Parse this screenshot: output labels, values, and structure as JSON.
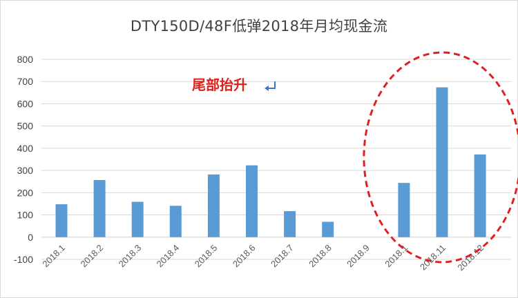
{
  "colors": {
    "bar": "#5b9bd5",
    "grid": "#d9d9d9",
    "annotation": "#e0201a",
    "highlight_ellipse": "#e02020"
  },
  "chart_data": {
    "type": "bar",
    "title": "DTY150D/48F低弹2018年月均现金流",
    "xlabel": "",
    "ylabel": "",
    "categories": [
      "2018.1",
      "2018.2",
      "2018.3",
      "2018.4",
      "2018.5",
      "2018.6",
      "2018.7",
      "2018.8",
      "2018.9",
      "2018.1",
      "2018.11",
      "2018.12"
    ],
    "values": [
      148,
      257,
      159,
      141,
      282,
      323,
      117,
      69,
      0,
      244,
      674,
      372
    ],
    "ylim": [
      -100,
      800
    ],
    "yticks": [
      -100,
      0,
      100,
      200,
      300,
      400,
      500,
      600,
      700,
      800
    ],
    "grid": true,
    "legend": "none",
    "annotations": [
      {
        "text": "尾部抬升",
        "arrow_icon": "return-arrow-icon"
      }
    ],
    "highlight": {
      "shape": "dashed-ellipse",
      "categories": [
        "2018.1",
        "2018.11",
        "2018.12"
      ]
    }
  }
}
